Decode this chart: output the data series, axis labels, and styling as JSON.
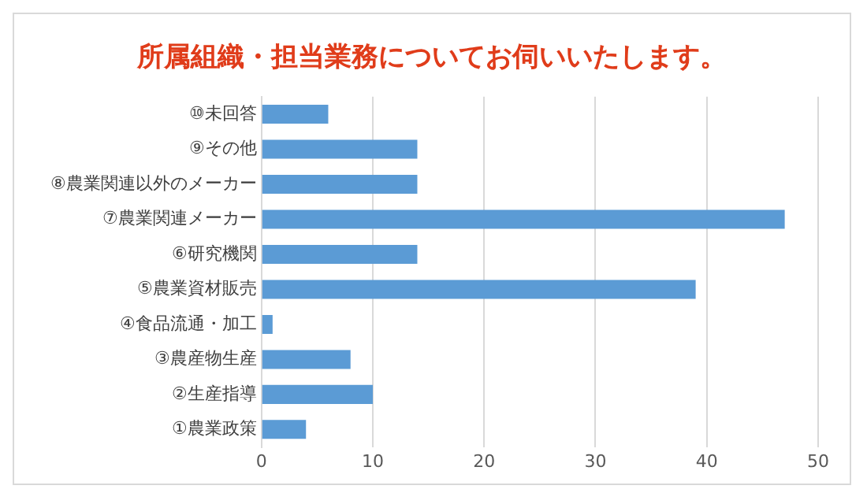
{
  "chart_data": {
    "type": "bar",
    "orientation": "horizontal",
    "title": "所属組織・担当業務についてお伺いいたします。",
    "categories": [
      "⑩未回答",
      "⑨その他",
      "⑧農業関連以外のメーカー",
      "⑦農業関連メーカー",
      "⑥研究機関",
      "⑤農業資材販売",
      "④食品流通・加工",
      "③農産物生産",
      "②生産指導",
      "①農業政策"
    ],
    "values": [
      6,
      14,
      14,
      47,
      14,
      39,
      1,
      8,
      10,
      4
    ],
    "color": "#5b9bd5",
    "xlim": [
      0,
      50
    ],
    "xticks": [
      0,
      10,
      20,
      30,
      40,
      50
    ],
    "grid": "x",
    "legend": false
  }
}
